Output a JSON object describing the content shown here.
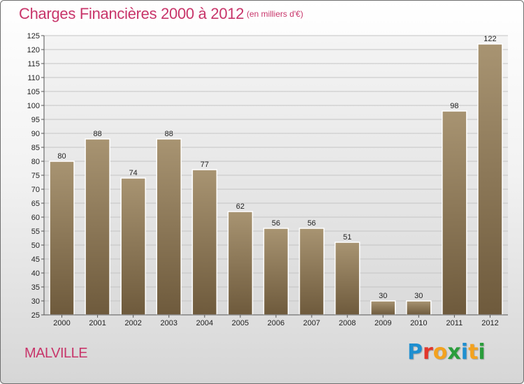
{
  "header": {
    "title": "Charges Financières 2000 à 2012",
    "unit": "(en milliers d'€)"
  },
  "footer": {
    "town": "MALVILLE",
    "logo": "Proxiti"
  },
  "colors": {
    "title": "#c8356a",
    "bar_top": "#a89472",
    "bar_bottom": "#6e5a3c",
    "logo_letters": [
      "#1f8fd0",
      "#e2362b",
      "#f3a21f",
      "#2a9d3b",
      "#1f8fd0",
      "#f3a21f",
      "#2a9d3b"
    ]
  },
  "chart_data": {
    "type": "bar",
    "title": "Charges Financières 2000 à 2012",
    "subtitle": "(en milliers d'€)",
    "categories": [
      "2000",
      "2001",
      "2002",
      "2003",
      "2004",
      "2005",
      "2006",
      "2007",
      "2008",
      "2009",
      "2010",
      "2011",
      "2012"
    ],
    "values": [
      80,
      88,
      74,
      88,
      77,
      62,
      56,
      56,
      51,
      30,
      30,
      98,
      122
    ],
    "ylim": [
      25,
      125
    ],
    "yticks": [
      25,
      30,
      35,
      40,
      45,
      50,
      55,
      60,
      65,
      70,
      75,
      80,
      85,
      90,
      95,
      100,
      105,
      110,
      115,
      120,
      125
    ],
    "grid": true,
    "legend": "none"
  }
}
